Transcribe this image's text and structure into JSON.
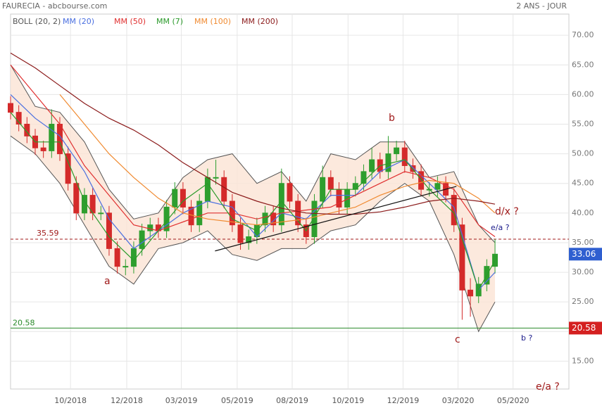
{
  "chart_data": {
    "type": "candlestick",
    "title": "FAURECIA - abcbourse.com",
    "subtitle": "2 ANS - JOUR",
    "up_color": "#2e9e2e",
    "down_color": "#d42a2a",
    "open": [
      58.5,
      57,
      55,
      53,
      51,
      50.5,
      55,
      50,
      45,
      40,
      43,
      40,
      40,
      34,
      31,
      31,
      34,
      37,
      38,
      37,
      41,
      44,
      41,
      38,
      42,
      46,
      46,
      42,
      38,
      35,
      36,
      38,
      40,
      38,
      45,
      42,
      38,
      36,
      42,
      46,
      44,
      41,
      44,
      45,
      47,
      49,
      47,
      50,
      51,
      48,
      47,
      44,
      44,
      45,
      43,
      38,
      27,
      26,
      28,
      31
    ],
    "high": [
      59.7,
      58.2,
      56.2,
      54.2,
      52.2,
      57.5,
      56.2,
      51.2,
      46.2,
      44.2,
      44.2,
      41.2,
      41.2,
      35.2,
      32.2,
      35.2,
      38.2,
      39.2,
      39.2,
      42.2,
      45.2,
      45.2,
      42.2,
      43.2,
      47.5,
      49,
      47.2,
      43.2,
      39.2,
      37.2,
      39.2,
      41.2,
      41.2,
      47.5,
      46.2,
      43.2,
      39.2,
      43.2,
      48,
      47.2,
      45.2,
      45.2,
      46.2,
      48.2,
      51,
      50.2,
      53,
      52.2,
      52.2,
      49.2,
      48.2,
      45.2,
      46.2,
      46.2,
      44.2,
      39.2,
      29,
      29.2,
      32.2,
      35.6
    ],
    "low": [
      55.8,
      53.8,
      51.8,
      49.8,
      49.3,
      49.3,
      48.8,
      43.8,
      38.8,
      38.8,
      38.8,
      38.8,
      32.8,
      29.8,
      29.5,
      29.8,
      32.8,
      35.8,
      35.8,
      35.8,
      39.8,
      39.8,
      36.8,
      36.8,
      40.8,
      44.8,
      40.8,
      36.8,
      33.8,
      33.8,
      34.8,
      36.8,
      36.8,
      36.8,
      40.8,
      36.8,
      34.8,
      34.8,
      40.8,
      42.8,
      39.8,
      39.8,
      42.8,
      43.8,
      45.8,
      45.8,
      45.8,
      48.8,
      46.8,
      45.8,
      42.8,
      42.8,
      42.8,
      41.8,
      36.8,
      22,
      22.5,
      24.8,
      26.8,
      29.8
    ],
    "close": [
      57,
      55,
      53,
      51,
      50.5,
      55,
      50,
      45,
      40,
      43,
      40,
      40,
      34,
      31,
      31,
      34,
      37,
      38,
      37,
      41,
      44,
      41,
      38,
      42,
      46,
      46,
      42,
      38,
      35,
      36,
      38,
      40,
      38,
      45,
      42,
      38,
      36,
      42,
      46,
      44,
      41,
      44,
      45,
      47,
      49,
      47,
      50,
      51,
      48,
      47,
      44,
      44,
      45,
      43,
      38,
      27,
      26,
      28,
      31,
      33.06
    ],
    "last_label": "33.06",
    "last_color": "#2f5fd0",
    "line_x": [
      0,
      3,
      6,
      9,
      12,
      15,
      18,
      21,
      24,
      27,
      30,
      33,
      36,
      39,
      42,
      45,
      48,
      51,
      54,
      57,
      59
    ],
    "bollinger": {
      "name": "BOLL (20, 2)",
      "color": "#555555",
      "fill": "#fbe3d4",
      "upper": [
        65,
        58,
        57,
        52,
        44,
        39,
        40,
        46,
        49,
        50,
        45,
        47,
        42,
        50,
        49,
        52,
        52,
        46,
        47,
        38,
        35
      ],
      "lower": [
        53,
        50,
        45,
        38,
        31,
        28,
        34,
        35,
        37,
        33,
        32,
        34,
        34,
        37,
        38,
        42,
        45,
        42,
        33,
        20,
        25
      ]
    },
    "series": [
      {
        "name": "MM (20)",
        "color": "#4a6fe0",
        "values": [
          60,
          56,
          53,
          47,
          39,
          34,
          37,
          40,
          42,
          41,
          36,
          40,
          39,
          43,
          43,
          47,
          49,
          45,
          41,
          27,
          30
        ]
      },
      {
        "name": "MM (50)",
        "color": "#e03030",
        "values": [
          65,
          60,
          55,
          48,
          43,
          38,
          37,
          38.5,
          40,
          40,
          39,
          40,
          40.5,
          41,
          43,
          45,
          47,
          46,
          44,
          38,
          36
        ]
      },
      {
        "name": "MM (7)",
        "color": "#2a9a2a",
        "values": [
          57,
          52,
          52,
          42,
          36,
          32,
          37,
          42,
          45,
          39,
          37,
          42,
          37,
          44,
          44,
          48,
          49,
          44,
          40,
          27,
          32
        ]
      },
      {
        "name": "MM (100)",
        "color": "#f08a30",
        "values": [
          null,
          null,
          60,
          55,
          50,
          46,
          42.5,
          40,
          39,
          38.5,
          38,
          38.5,
          39,
          40,
          41,
          43,
          44.5,
          45.5,
          45,
          42.5,
          40
        ]
      },
      {
        "name": "MM (200)",
        "color": "#8b1a1a",
        "values": [
          67,
          64.5,
          61.5,
          58.5,
          56,
          54,
          51.5,
          48.5,
          46,
          43.5,
          42,
          40.8,
          40,
          39.8,
          39.8,
          40.2,
          41,
          42,
          42.5,
          42,
          41.5
        ]
      }
    ],
    "trendline": {
      "x": [
        24.9,
        54.3
      ],
      "values": [
        33.6,
        44.5
      ]
    },
    "levels": [
      {
        "value": 35.59,
        "label": "35.59",
        "color": "#a01a1a"
      },
      {
        "value": 20.58,
        "label": "20.58",
        "color": "#2a8a2a"
      }
    ],
    "annotations": [
      {
        "text": "a",
        "color": "#a01a1a"
      },
      {
        "text": "b",
        "color": "#a01a1a"
      },
      {
        "text": "c",
        "color": "#a01a1a"
      },
      {
        "text": "d/x ?",
        "color": "#a01a1a"
      },
      {
        "text": "e/a ?",
        "color": "#1a1a8a"
      },
      {
        "text": "b ?",
        "color": "#1a1a8a"
      },
      {
        "text": "e/a ?",
        "color": "#a01a1a"
      }
    ],
    "xlim": [
      0,
      68
    ],
    "xticks": [
      {
        "value": 7.3,
        "label": "10/2018"
      },
      {
        "value": 14.15,
        "label": "12/2018"
      },
      {
        "value": 20.8,
        "label": "03/2019"
      },
      {
        "value": 27.6,
        "label": "05/2019"
      },
      {
        "value": 34.3,
        "label": "08/2019"
      },
      {
        "value": 41.1,
        "label": "10/2019"
      },
      {
        "value": 47.8,
        "label": "12/2019"
      },
      {
        "value": 54.5,
        "label": "03/2020"
      },
      {
        "value": 61.2,
        "label": "05/2020"
      }
    ],
    "ylim": [
      10.3,
      71.8
    ],
    "yticks": [
      {
        "value": 15,
        "label": "15.00"
      },
      {
        "value": 20,
        "label": "20.00"
      },
      {
        "value": 25,
        "label": "25.00"
      },
      {
        "value": 30,
        "label": "30.00"
      },
      {
        "value": 35,
        "label": "35.00"
      },
      {
        "value": 40,
        "label": "40.00"
      },
      {
        "value": 45,
        "label": "45.00"
      },
      {
        "value": 50,
        "label": "50.00"
      },
      {
        "value": 55,
        "label": "55.00"
      },
      {
        "value": 60,
        "label": "60.00"
      },
      {
        "value": 65,
        "label": "65.00"
      },
      {
        "value": 70,
        "label": "70.00"
      }
    ],
    "grid": true
  }
}
